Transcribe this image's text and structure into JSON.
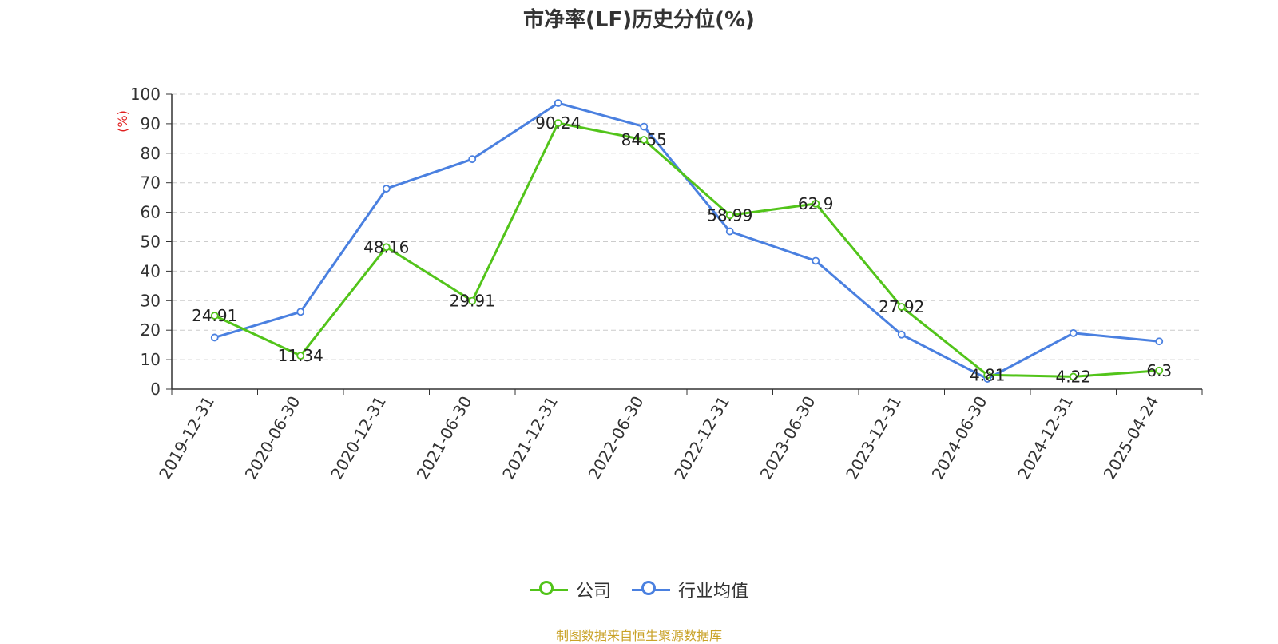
{
  "chart_data": {
    "type": "line",
    "title": "市净率(LF)历史分位(%)",
    "ylabel": "(%)",
    "ylim": [
      0,
      100
    ],
    "yticks": [
      0,
      10,
      20,
      30,
      40,
      50,
      60,
      70,
      80,
      90,
      100
    ],
    "categories": [
      "2019-12-31",
      "2020-06-30",
      "2020-12-31",
      "2021-06-30",
      "2021-12-31",
      "2022-06-30",
      "2022-12-31",
      "2023-06-30",
      "2023-12-31",
      "2024-06-30",
      "2024-12-31",
      "2025-04-24"
    ],
    "grid": true,
    "legend_position": "bottom",
    "series": [
      {
        "name": "公司",
        "color": "#52c41a",
        "values": [
          24.91,
          11.34,
          48.16,
          29.91,
          90.24,
          84.55,
          58.99,
          62.9,
          27.92,
          4.81,
          4.22,
          6.3
        ],
        "labels": [
          "24.91",
          "11.34",
          "48.16",
          "29.91",
          "90.24",
          "84.55",
          "58.99",
          "62.9",
          "27.92",
          "4.81",
          "4.22",
          "6.3"
        ]
      },
      {
        "name": "行业均值",
        "color": "#4a80e0",
        "values": [
          17.5,
          26.2,
          68.0,
          78.0,
          97.0,
          89.0,
          53.5,
          43.5,
          18.5,
          3.5,
          19.0,
          16.2
        ]
      }
    ]
  },
  "footer": {
    "source": "制图数据来自恒生聚源数据库"
  }
}
